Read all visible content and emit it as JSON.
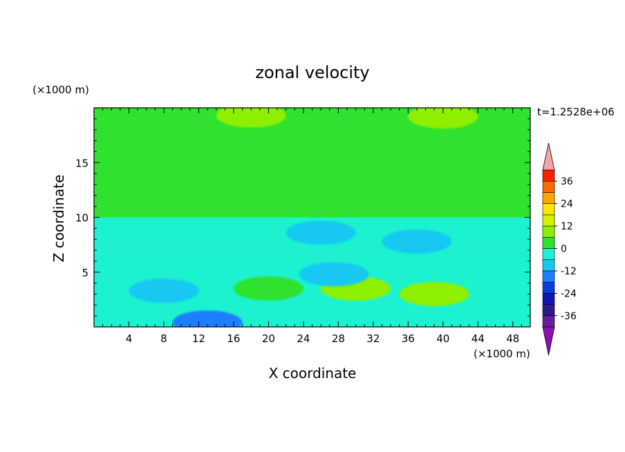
{
  "chart_data": {
    "type": "heatmap",
    "title": "zonal velocity",
    "xlabel": "X coordinate",
    "ylabel": "Z coordinate",
    "x_unit": "(×1000 m)",
    "y_unit": "(×1000 m)",
    "time_label": "t=1.2528e+06",
    "xlim": [
      0,
      50
    ],
    "ylim": [
      0,
      20
    ],
    "xticks": [
      4,
      8,
      12,
      16,
      20,
      24,
      28,
      32,
      36,
      40,
      44,
      48
    ],
    "yticks": [
      5,
      10,
      15
    ],
    "colorbar": {
      "levels": [
        -42,
        -36,
        -30,
        -24,
        -18,
        -12,
        -6,
        0,
        6,
        12,
        18,
        24,
        30,
        36,
        42
      ],
      "tick_labels": [
        "36",
        "24",
        "12",
        "0",
        "-12",
        "-24",
        "-36"
      ],
      "tick_values": [
        36,
        24,
        12,
        0,
        -12,
        -24,
        -36
      ],
      "colors": [
        "#6a1d9a",
        "#2a1a8c",
        "#1414b4",
        "#0a3ee0",
        "#1f7fff",
        "#16c8f2",
        "#1cf2cf",
        "#2ee22e",
        "#8ef000",
        "#d8f000",
        "#ffe600",
        "#ffa500",
        "#ff6a00",
        "#ff2000"
      ],
      "under_color": "#8a10b0",
      "over_color": "#f4a6a6"
    },
    "bands": [
      {
        "z_range": [
          19,
          20
        ],
        "value": 4
      },
      {
        "z_range": [
          16,
          19
        ],
        "value": 4
      },
      {
        "z_range": [
          11,
          16
        ],
        "value": 2
      },
      {
        "z_range": [
          10,
          11
        ],
        "value": 0
      },
      {
        "z_range": [
          7,
          10
        ],
        "value": -6
      },
      {
        "z_range": [
          0,
          7
        ],
        "value": -4
      }
    ],
    "features": [
      {
        "x": 40,
        "z": 19.2,
        "value": 10
      },
      {
        "x": 18,
        "z": 19.3,
        "value": 10
      },
      {
        "x": 28,
        "z": 11.2,
        "value": 2
      },
      {
        "x": 37,
        "z": 7.8,
        "value": -10
      },
      {
        "x": 26,
        "z": 8.6,
        "value": -10
      },
      {
        "x": 20,
        "z": 3.5,
        "value": 4
      },
      {
        "x": 30,
        "z": 3.5,
        "value": 6
      },
      {
        "x": 39,
        "z": 3.0,
        "value": 6
      },
      {
        "x": 27.5,
        "z": 4.8,
        "value": -12
      },
      {
        "x": 8,
        "z": 3.3,
        "value": -10
      },
      {
        "x": 13,
        "z": 0.4,
        "value": -16
      }
    ]
  }
}
